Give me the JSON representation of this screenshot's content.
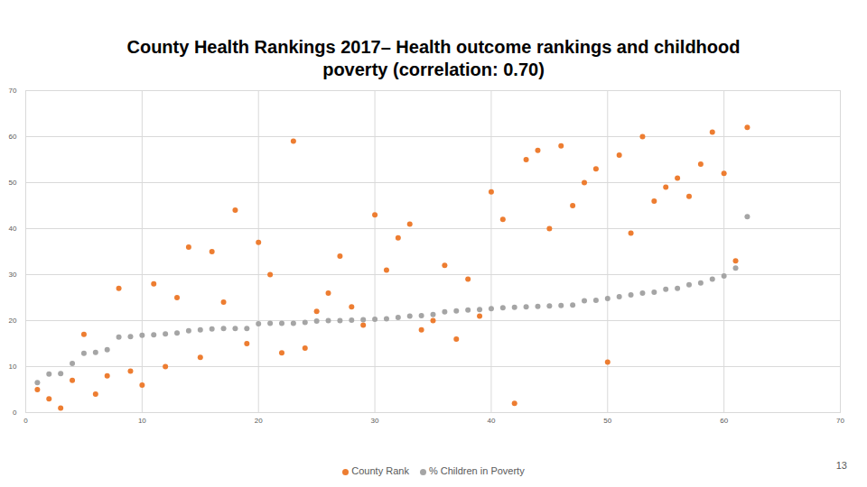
{
  "chart_data": {
    "type": "scatter",
    "title": "County Health Rankings 2017– Health outcome rankings and childhood poverty (correlation: 0.70)",
    "x": [
      1,
      2,
      3,
      4,
      5,
      6,
      7,
      8,
      9,
      10,
      11,
      12,
      13,
      14,
      15,
      16,
      17,
      18,
      19,
      20,
      21,
      22,
      23,
      24,
      25,
      26,
      27,
      28,
      29,
      30,
      31,
      32,
      33,
      34,
      35,
      36,
      37,
      38,
      39,
      40,
      41,
      42,
      43,
      44,
      45,
      46,
      47,
      48,
      49,
      50,
      51,
      52,
      53,
      54,
      55,
      56,
      57,
      58,
      59,
      60,
      61,
      62
    ],
    "series": [
      {
        "name": "County Rank",
        "color": "#ed7d31",
        "marker": "circle",
        "values": [
          5,
          3,
          1,
          7,
          17,
          4,
          8,
          27,
          9,
          6,
          28,
          10,
          25,
          36,
          12,
          35,
          24,
          44,
          15,
          37,
          30,
          13,
          59,
          14,
          22,
          26,
          34,
          23,
          19,
          43,
          31,
          38,
          41,
          18,
          20,
          32,
          16,
          29,
          21,
          48,
          42,
          2,
          55,
          57,
          40,
          58,
          45,
          50,
          53,
          11,
          56,
          39,
          60,
          46,
          49,
          51,
          47,
          54,
          61,
          52,
          33,
          62
        ]
      },
      {
        "name": "% Children in Poverty",
        "color": "#a5a5a5",
        "marker": "circle",
        "values": [
          6.5,
          8.4,
          8.5,
          10.7,
          12.9,
          13.1,
          13.7,
          16.4,
          16.5,
          16.8,
          16.9,
          17.1,
          17.3,
          17.8,
          18.0,
          18.2,
          18.3,
          18.3,
          18.3,
          19.3,
          19.4,
          19.4,
          19.4,
          19.6,
          19.9,
          20.0,
          20.0,
          20.1,
          20.2,
          20.3,
          20.4,
          20.7,
          21.0,
          21.1,
          21.3,
          21.9,
          22.1,
          22.3,
          22.4,
          22.6,
          22.8,
          22.9,
          23.0,
          23.1,
          23.2,
          23.3,
          23.4,
          24.3,
          24.4,
          24.8,
          25.2,
          25.6,
          26.0,
          26.2,
          26.8,
          27.0,
          27.8,
          28.2,
          29.0,
          29.7,
          31.4,
          42.6
        ]
      }
    ],
    "xlim": [
      0,
      70
    ],
    "xticks": [
      0,
      10,
      20,
      30,
      40,
      50,
      60,
      70
    ],
    "ylim": [
      0,
      70
    ],
    "yticks": [
      0,
      10,
      20,
      30,
      40,
      50,
      60,
      70
    ],
    "grid": true,
    "legend": "bottom",
    "annotations": [
      "13"
    ]
  }
}
